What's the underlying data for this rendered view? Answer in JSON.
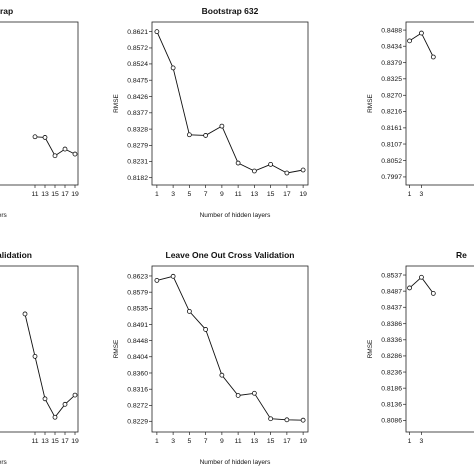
{
  "chart_data": [
    {
      "type": "line",
      "title": "rap",
      "xlabel": "dden layers",
      "ylabel": "",
      "x_ticks": [
        "11",
        "13",
        "15",
        "17",
        "19"
      ],
      "y_ticks": [],
      "x": [
        11,
        13,
        15,
        17,
        19
      ],
      "series": [
        {
          "values": [
            0.8305,
            0.8303,
            0.8248,
            0.8268,
            0.8253
          ]
        }
      ],
      "xlim": [
        0,
        19.6
      ],
      "ylim": [
        0.816,
        0.865
      ],
      "grid": false
    },
    {
      "type": "line",
      "title": "Bootstrap 632",
      "xlabel": "Number of hidden layers",
      "ylabel": "RMSE",
      "x_ticks": [
        "1",
        "3",
        "5",
        "7",
        "9",
        "11",
        "13",
        "15",
        "17",
        "19"
      ],
      "y_ticks": [
        "0.8621",
        "0.8572",
        "0.8524",
        "0.8475",
        "0.8426",
        "0.8377",
        "0.8328",
        "0.8279",
        "0.8231",
        "0.8182"
      ],
      "x": [
        1,
        3,
        5,
        7,
        9,
        11,
        13,
        15,
        17,
        19
      ],
      "series": [
        {
          "values": [
            0.8621,
            0.8512,
            0.8311,
            0.8309,
            0.8337,
            0.8226,
            0.8202,
            0.8222,
            0.8196,
            0.8205
          ]
        }
      ],
      "xlim": [
        0.4,
        19.6
      ],
      "ylim": [
        0.816,
        0.865
      ],
      "grid": false
    },
    {
      "type": "line",
      "title": "",
      "xlabel": "",
      "ylabel": "RMSE",
      "x_ticks": [
        "1",
        "3"
      ],
      "y_ticks": [
        "0.8488",
        "0.8434",
        "0.8379",
        "0.8325",
        "0.8270",
        "0.8216",
        "0.8161",
        "0.8107",
        "0.8052",
        "0.7997"
      ],
      "x": [
        1,
        3,
        5
      ],
      "series": [
        {
          "values": [
            0.8452,
            0.8478,
            0.8398
          ]
        }
      ],
      "xlim": [
        0.4,
        19.6
      ],
      "ylim": [
        0.797,
        0.8515
      ],
      "grid": false
    },
    {
      "type": "line",
      "title": "ross Validation",
      "xlabel": "dden layers",
      "ylabel": "",
      "x_ticks": [
        "11",
        "13",
        "15",
        "17",
        "19"
      ],
      "y_ticks": [],
      "x": [
        9,
        11,
        13,
        15,
        17,
        19
      ],
      "series": [
        {
          "values": [
            0.852,
            0.8405,
            0.829,
            0.824,
            0.8275,
            0.83
          ]
        }
      ],
      "xlim": [
        0,
        19.6
      ],
      "ylim": [
        0.82,
        0.865
      ],
      "grid": false
    },
    {
      "type": "line",
      "title": "Leave One Out Cross Validation",
      "xlabel": "Number of hidden layers",
      "ylabel": "RMSE",
      "x_ticks": [
        "1",
        "3",
        "5",
        "7",
        "9",
        "11",
        "13",
        "15",
        "17",
        "19"
      ],
      "y_ticks": [
        "0.8623",
        "0.8579",
        "0.8535",
        "0.8491",
        "0.8448",
        "0.8404",
        "0.8360",
        "0.8316",
        "0.8272",
        "0.8229"
      ],
      "x": [
        1,
        3,
        5,
        7,
        9,
        11,
        13,
        15,
        17,
        19
      ],
      "series": [
        {
          "values": [
            0.8611,
            0.8622,
            0.8527,
            0.8478,
            0.8354,
            0.8299,
            0.8305,
            0.8236,
            0.8233,
            0.8232
          ]
        }
      ],
      "xlim": [
        0.4,
        19.6
      ],
      "ylim": [
        0.82,
        0.865
      ],
      "grid": false
    },
    {
      "type": "line",
      "title": "Re",
      "xlabel": "",
      "ylabel": "RMSE",
      "x_ticks": [
        "1",
        "3"
      ],
      "y_ticks": [
        "0.8537",
        "0.8487",
        "0.8437",
        "0.8386",
        "0.8336",
        "0.8286",
        "0.8236",
        "0.8186",
        "0.8136",
        "0.8086"
      ],
      "x": [
        1,
        3,
        5
      ],
      "series": [
        {
          "values": [
            0.8497,
            0.853,
            0.848
          ]
        }
      ],
      "xlim": [
        0.4,
        19.6
      ],
      "ylim": [
        0.805,
        0.8565
      ],
      "grid": false
    }
  ]
}
